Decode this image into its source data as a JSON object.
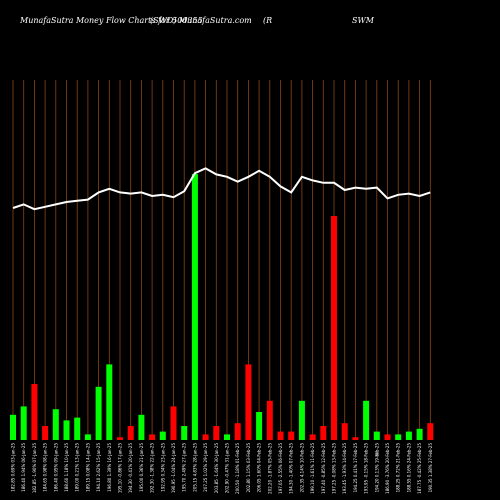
{
  "header": {
    "part1": "MunafaSutra  Money Flow  Charts for 500355",
    "part2": "(SWD) MunafaSutra.com",
    "part3": "(R",
    "part4": "SWM"
  },
  "colors": {
    "background": "#000000",
    "grid": "#8B4513",
    "line": "#ffffff",
    "up": "#00ff00",
    "down": "#ff0000"
  },
  "chart_data": {
    "type": "bar",
    "title": "",
    "xlabel": "",
    "ylabel": "",
    "ylim": [
      0,
      100
    ],
    "categories": [
      "182.85 0.69% 03-Jan-25",
      "186.40 1.94% 06-Jan-25",
      "182.85 -1.90% 07-Jan-25",
      "184.65 0.98% 08-Jan-25",
      "186.40 0.95% 09-Jan-25",
      "188.60 1.18% 10-Jan-25",
      "189.00 0.21% 13-Jan-25",
      "189.15 0.08% 14-Jan-25",
      "194.10 2.62% 15-Jan-25",
      "196.80 1.39% 16-Jan-25",
      "195.10 -0.86% 17-Jan-25",
      "194.30 -0.41% 20-Jan-25",
      "195.00 0.36% 21-Jan-25",
      "192.30 -1.38% 22-Jan-25",
      "192.95 0.34% 23-Jan-25",
      "190.95 -1.04% 24-Jan-25",
      "195.70 2.49% 27-Jan-25",
      "205.15 4.83% 28-Jan-25",
      "207.25 1.02% 29-Jan-25",
      "203.85 -1.64% 30-Jan-25",
      "202.90 -0.47% 31-Jan-25",
      "200.50 -1.18% 01-Feb-25",
      "202.80 1.15% 03-Feb-25",
      "206.05 1.60% 04-Feb-25",
      "202.20 -1.87% 05-Feb-25",
      "197.05 -2.55% 06-Feb-25",
      "194.30 -1.40% 07-Feb-25",
      "202.35 4.14% 10-Feb-25",
      "199.10 -1.61% 11-Feb-25",
      "197.40 -0.85% 12-Feb-25",
      "197.25 -0.08% 13-Feb-25",
      "193.45 -1.93% 14-Feb-25",
      "194.25 0.41% 17-Feb-25",
      "193.95 -0.15% 18-Feb-25",
      "194.20 0.13% 19-Feb-25",
      "186.90 -3.76% 20-Feb-25",
      "188.25 0.72% 21-Feb-25",
      "188.55 0.16% 24-Feb-25",
      "187.75 -0.42% 25-Feb-25",
      "190.35 1.38% 27-Feb-25"
    ],
    "price": [
      60,
      63,
      59,
      61,
      63,
      65,
      66,
      67,
      73,
      76,
      73,
      72,
      73,
      70,
      71,
      69,
      74,
      89,
      93,
      88,
      86,
      82,
      86,
      91,
      86,
      78,
      73,
      86,
      83,
      81,
      81,
      75,
      77,
      76,
      77,
      68,
      71,
      72,
      70,
      73
    ],
    "series": [
      {
        "values": [
          9,
          12,
          20,
          5,
          11,
          7,
          8,
          2,
          19,
          27,
          1,
          5,
          9,
          2,
          3,
          12,
          5,
          95,
          2,
          5,
          2,
          6,
          27,
          10,
          14,
          3,
          3,
          14,
          2,
          5,
          80,
          6,
          1,
          14,
          3,
          2,
          2,
          3,
          4,
          6
        ],
        "direction": [
          "up",
          "up",
          "down",
          "down",
          "up",
          "up",
          "up",
          "up",
          "up",
          "up",
          "down",
          "down",
          "up",
          "down",
          "up",
          "down",
          "up",
          "up",
          "down",
          "down",
          "up",
          "down",
          "down",
          "up",
          "down",
          "down",
          "down",
          "up",
          "down",
          "down",
          "down",
          "down",
          "down",
          "up",
          "up",
          "down",
          "up",
          "up",
          "up",
          "down"
        ]
      }
    ],
    "grid": true,
    "extra_label": "%"
  }
}
